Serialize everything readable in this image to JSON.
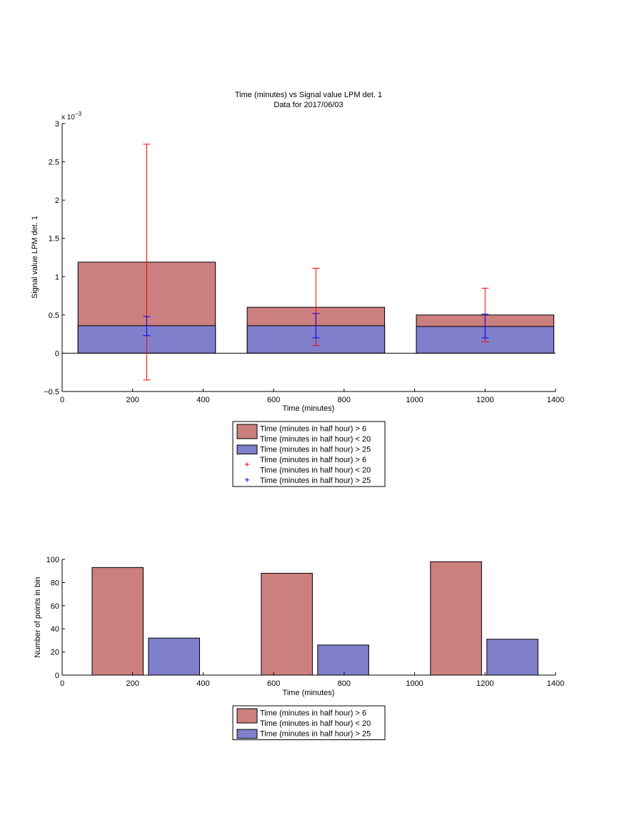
{
  "colors": {
    "bar_a": "#cc7f7f",
    "bar_b": "#7f7fcc",
    "err_a": "#ff0000",
    "err_b": "#0000ff",
    "axis": "#000000"
  },
  "chart_data": [
    {
      "type": "bar",
      "title": "Time (minutes) vs Signal value LPM det. 1",
      "subtitle": "Data for 2017/06/03",
      "xlabel": "Time (minutes)",
      "ylabel": "Signal value LPM det. 1",
      "y_exponent_label": "x 10",
      "y_exponent_power": "−3",
      "xlim": [
        0,
        1400
      ],
      "ylim": [
        -0.5,
        3
      ],
      "xticks": [
        "0",
        "200",
        "400",
        "600",
        "800",
        "1000",
        "1200",
        "1400"
      ],
      "yticks": [
        "−0.5",
        "0",
        "0.5",
        "1",
        "1.5",
        "2",
        "2.5",
        "3"
      ],
      "layout": "overlaid",
      "bins": [
        {
          "x_start": 45,
          "x_end": 435,
          "center": 240
        },
        {
          "x_start": 525,
          "x_end": 915,
          "center": 720
        },
        {
          "x_start": 1005,
          "x_end": 1395,
          "center": 1200
        }
      ],
      "series": [
        {
          "values": [
            1.19,
            0.6,
            0.5
          ],
          "error_low": [
            -0.35,
            0.1,
            0.15
          ],
          "error_high": [
            2.73,
            1.11,
            0.85
          ]
        },
        {
          "values": [
            0.36,
            0.36,
            0.35
          ],
          "error_low": [
            0.23,
            0.2,
            0.2
          ],
          "error_high": [
            0.48,
            0.52,
            0.51
          ]
        }
      ],
      "legend": {
        "placement": "below",
        "entries": [
          {
            "lines": [
              "Time (minutes in half hour) > 6",
              "Time (minutes in half hour) < 20"
            ]
          },
          {
            "lines": [
              "Time (minutes in half hour) > 25"
            ]
          },
          {
            "lines": [
              "Time (minutes in half hour) > 6",
              "Time (minutes in half hour) < 20"
            ]
          },
          {
            "lines": [
              "Time (minutes in half hour) > 25"
            ]
          }
        ]
      },
      "grid": false
    },
    {
      "type": "bar",
      "title": "",
      "xlabel": "Time (minutes)",
      "ylabel": "Number of points in bin",
      "xlim": [
        0,
        1400
      ],
      "ylim": [
        0,
        100
      ],
      "xticks": [
        "0",
        "200",
        "400",
        "600",
        "800",
        "1000",
        "1200",
        "1400"
      ],
      "yticks": [
        "0",
        "20",
        "40",
        "60",
        "80",
        "100"
      ],
      "layout": "grouped",
      "bars": [
        {
          "series": 0,
          "x_start": 85,
          "x_end": 230,
          "value": 93
        },
        {
          "series": 1,
          "x_start": 245,
          "x_end": 390,
          "value": 32
        },
        {
          "series": 0,
          "x_start": 565,
          "x_end": 710,
          "value": 88
        },
        {
          "series": 1,
          "x_start": 725,
          "x_end": 870,
          "value": 26
        },
        {
          "series": 0,
          "x_start": 1045,
          "x_end": 1190,
          "value": 98
        },
        {
          "series": 1,
          "x_start": 1205,
          "x_end": 1350,
          "value": 31
        }
      ],
      "legend": {
        "placement": "below",
        "entries": [
          {
            "lines": [
              "Time (minutes in half hour) > 6",
              "Time (minutes in half hour) < 20"
            ]
          },
          {
            "lines": [
              "Time (minutes in half hour) > 25"
            ]
          }
        ]
      },
      "grid": false
    }
  ]
}
